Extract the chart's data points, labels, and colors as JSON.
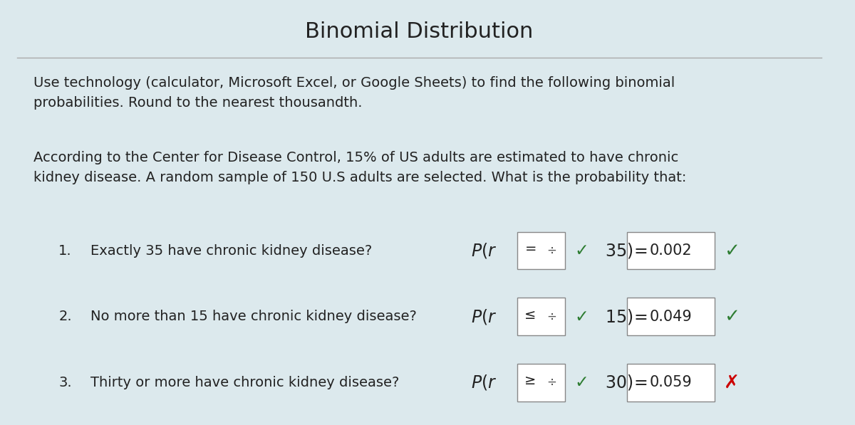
{
  "title": "Binomial Distribution",
  "background_color": "#dce9ed",
  "title_fontsize": 22,
  "title_color": "#222222",
  "body_text_1": "Use technology (calculator, Microsoft Excel, or Google Sheets) to find the following binomial\nprobabilities. Round to the nearest thousandth.",
  "body_text_2": "According to the Center for Disease Control, 15% of US adults are estimated to have chronic\nkidney disease. A random sample of 150 U.S adults are selected. What is the probability that:",
  "body_fontsize": 14,
  "body_color": "#222222",
  "questions": [
    {
      "number": "1.",
      "text": "Exactly 35 have chronic kidney disease?",
      "operator": "=",
      "value": "35) =",
      "answer": "0.002",
      "correct": true
    },
    {
      "number": "2.",
      "text": "No more than 15 have chronic kidney disease?",
      "operator": "≤",
      "value": "15) =",
      "answer": "0.049",
      "correct": true
    },
    {
      "number": "3.",
      "text": "Thirty or more have chronic kidney disease?",
      "operator": "≥",
      "value": "30) =",
      "answer": "0.059",
      "correct": false
    }
  ],
  "check_color": "#2e7d32",
  "cross_color": "#cc0000",
  "box_color": "#ffffff",
  "box_border_color": "#888888",
  "line_color": "#aaaaaa",
  "answer_fontsize": 15,
  "question_fontsize": 14
}
